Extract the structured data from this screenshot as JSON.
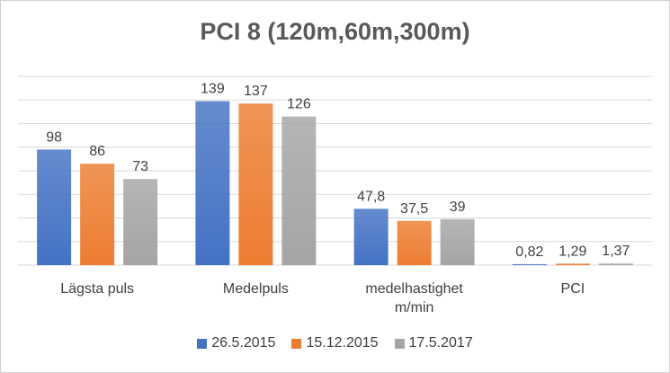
{
  "chart_data": {
    "type": "bar",
    "title": "PCI 8 (120m,60m,300m)",
    "categories": [
      "Lägsta puls",
      "Medelpuls",
      "medelhastighet m/min",
      "PCI"
    ],
    "category_lines": [
      [
        "Lägsta puls"
      ],
      [
        "Medelpuls"
      ],
      [
        "medelhastighet",
        "m/min"
      ],
      [
        "PCI"
      ]
    ],
    "series": [
      {
        "name": "26.5.2015",
        "color": "#4472C4",
        "values": [
          98,
          139,
          47.8,
          0.82
        ],
        "labels": [
          "98",
          "139",
          "47,8",
          "0,82"
        ]
      },
      {
        "name": "15.12.2015",
        "color": "#ED7D31",
        "values": [
          86,
          137,
          37.5,
          1.29
        ],
        "labels": [
          "86",
          "137",
          "37,5",
          "1,29"
        ]
      },
      {
        "name": "17.5.2017",
        "color": "#A5A5A5",
        "values": [
          73,
          126,
          39,
          1.37
        ],
        "labels": [
          "73",
          "126",
          "39",
          "1,37"
        ]
      }
    ],
    "ylim": [
      0,
      160
    ],
    "grid": true,
    "legend_position": "bottom"
  }
}
